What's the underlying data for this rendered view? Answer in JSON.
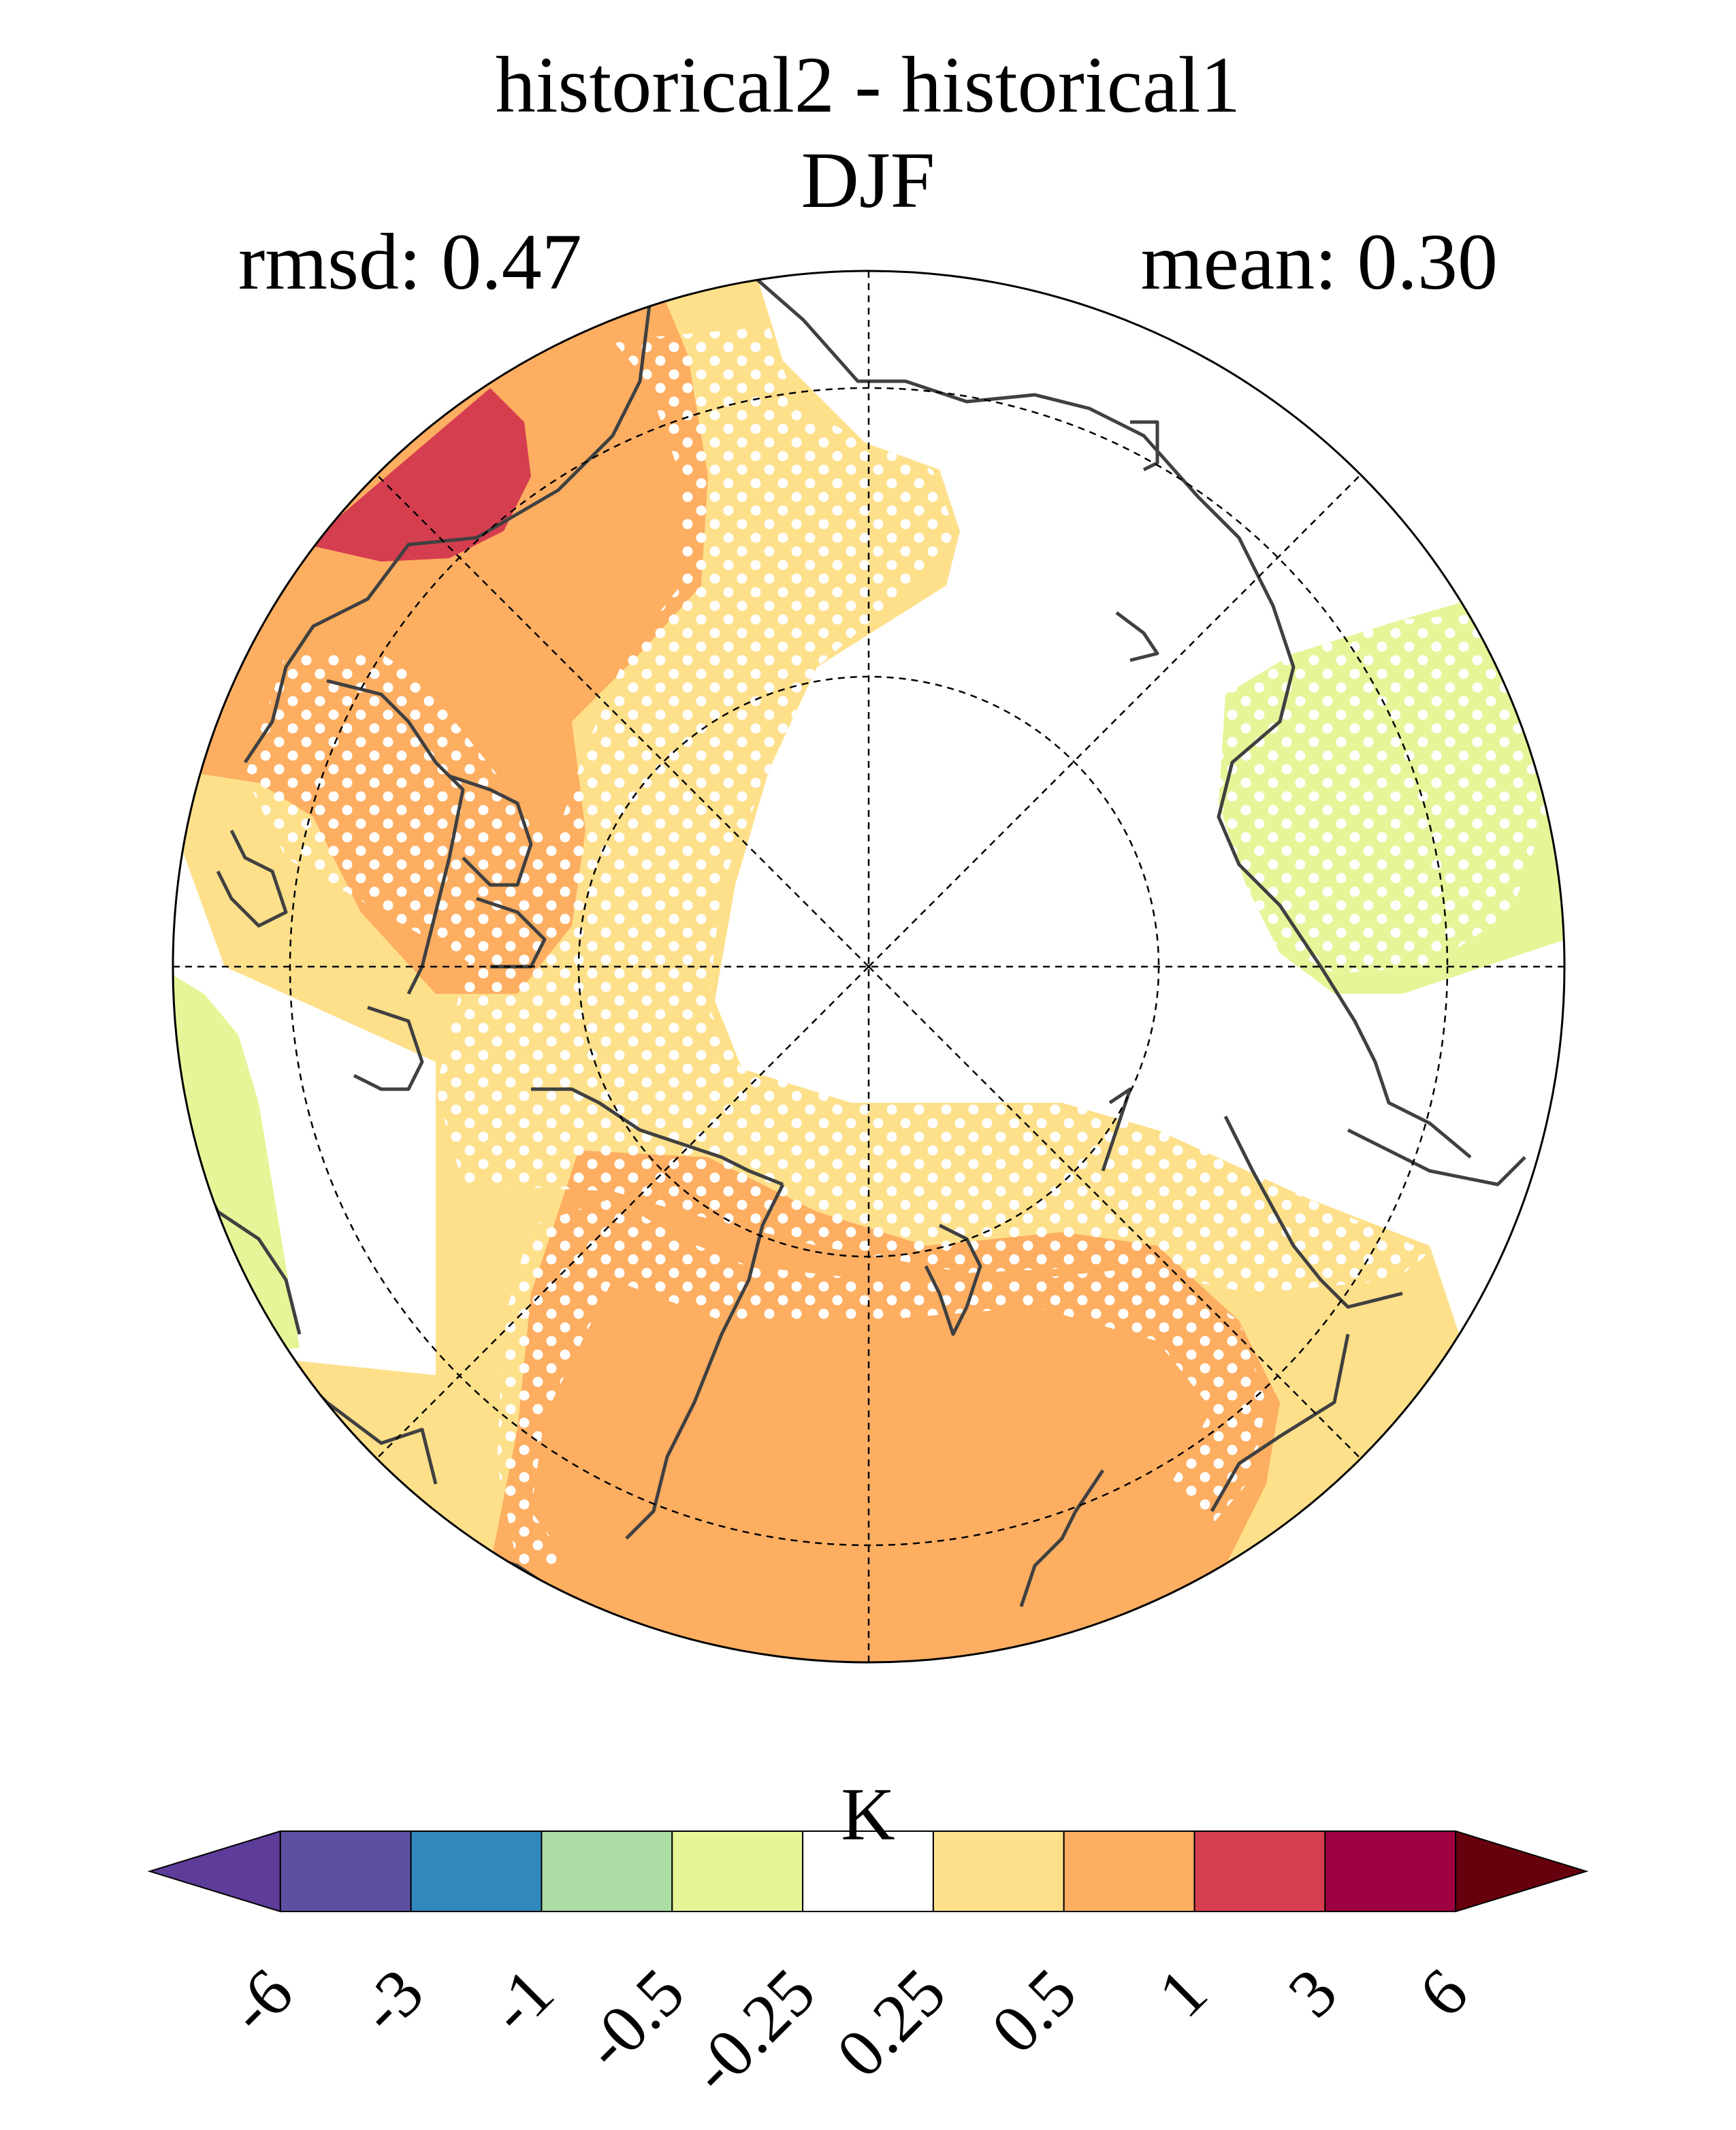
{
  "figure": {
    "title_line1": "historical2 - historical1",
    "title_line2": "DJF",
    "stat_left": "rmsd: 0.47",
    "stat_right": "mean: 0.30"
  },
  "colorbar": {
    "unit": "K",
    "tick_labels": [
      "-6",
      "-3",
      "-1",
      "-0.5",
      "-0.25",
      "0.25",
      "0.5",
      "1",
      "3",
      "6"
    ],
    "colors": [
      "#5e3c99",
      "#5e4fa2",
      "#3288bd",
      "#abdda4",
      "#e6f598",
      "#ffffff",
      "#fee08b",
      "#fdae61",
      "#d53e4f",
      "#9e0142",
      "#67000d"
    ]
  },
  "map": {
    "projection": "north polar stereographic",
    "stippling": "white dots mark significant areas",
    "colors": {
      "land_outline": "#404040",
      "grid": "#000000",
      "strong_warm": "#d53e4f",
      "warm": "#fdae61",
      "mild_warm": "#fee08b",
      "mild_cool": "#e6f598"
    }
  }
}
